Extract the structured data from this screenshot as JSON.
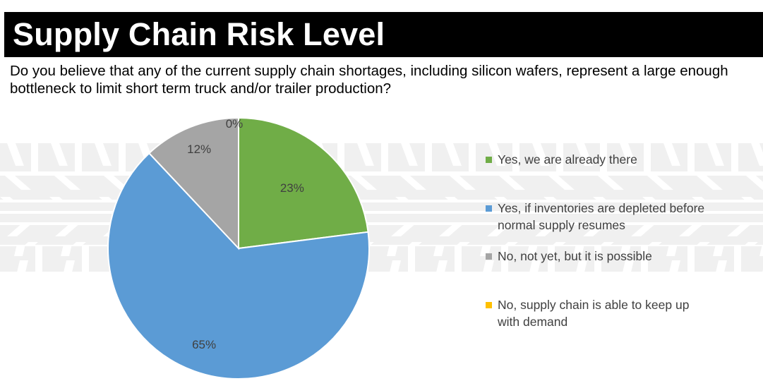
{
  "header": {
    "title": "Supply Chain Risk Level",
    "question": "Do you believe that any of the current supply chain shortages, including silicon wafers, represent a large enough bottleneck to limit short term truck and/or trailer production?"
  },
  "chart_data": {
    "type": "pie",
    "title": "",
    "start_angle_deg": 0,
    "direction": "clockwise",
    "slices": [
      {
        "label": "Yes, we are already there",
        "value": 23,
        "display": "23%",
        "color": "#70AD47"
      },
      {
        "label": "Yes, if inventories are depleted before normal supply resumes",
        "value": 65,
        "display": "65%",
        "color": "#5B9BD5"
      },
      {
        "label": "No, not yet, but it is possible",
        "value": 12,
        "display": "12%",
        "color": "#A5A5A5"
      },
      {
        "label": "No, supply chain is able to keep up with demand",
        "value": 0,
        "display": "0%",
        "color": "#FFC000"
      }
    ],
    "legend_position": "right"
  },
  "legend": {
    "items": [
      {
        "label": "Yes, we are already there",
        "color": "#70AD47"
      },
      {
        "label": "Yes, if inventories are depleted before normal supply resumes",
        "color": "#5B9BD5"
      },
      {
        "label": "No, not yet, but it is possible",
        "color": "#A5A5A5"
      },
      {
        "label": "No, supply chain is able to keep up with demand",
        "color": "#FFC000"
      }
    ]
  }
}
